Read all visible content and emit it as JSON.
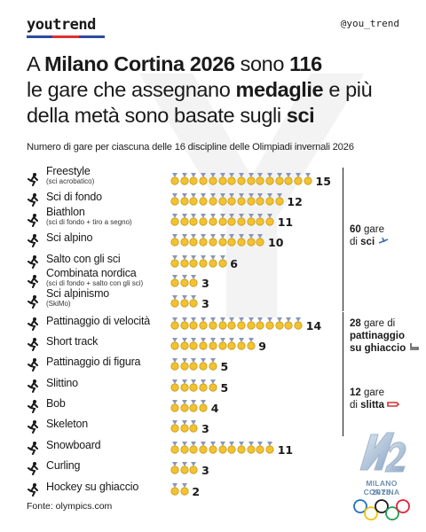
{
  "header": {
    "logo": "youtrend",
    "logo_colors": [
      "#2c4aa0",
      "#e03030",
      "#2c4aa0"
    ],
    "handle": "@you_trend"
  },
  "title": {
    "p1": "A ",
    "b1": "Milano Cortina 2026",
    "p2": " sono ",
    "b2": "116",
    "p3": " le gare che assegnano ",
    "b3": "medaglie",
    "p4": " e più della metà sono basate sugli ",
    "b4": "sci"
  },
  "subtitle": "Numero di gare per ciascuna delle 16 discipline delle Olimpiadi invernali 2026",
  "chart_data": {
    "type": "bar",
    "title": "A Milano Cortina 2026 sono 116 le gare che assegnano medaglie e più della metà sono basate sugli sci",
    "subtitle": "Numero di gare per ciascuna delle 16 discipline delle Olimpiadi invernali 2026",
    "categories": [
      {
        "name": "Freestyle",
        "note": "(sci acrobatico)",
        "icon": "freestyle-skier-icon"
      },
      {
        "name": "Sci di fondo",
        "note": "",
        "icon": "cross-country-skier-icon"
      },
      {
        "name": "Biathlon",
        "note": "(sci di fondo + tiro a segno)",
        "icon": "biathlon-icon"
      },
      {
        "name": "Sci alpino",
        "note": "",
        "icon": "alpine-skier-icon"
      },
      {
        "name": "Salto con gli sci",
        "note": "",
        "icon": "ski-jump-icon"
      },
      {
        "name": "Combinata nordica",
        "note": "(sci di fondo + salto con gli sci)",
        "icon": "nordic-combined-icon"
      },
      {
        "name": "Sci alpinismo",
        "note": "(SkiMo)",
        "icon": "ski-mountaineering-icon"
      },
      {
        "name": "Pattinaggio di velocità",
        "note": "",
        "icon": "speed-skater-icon"
      },
      {
        "name": "Short track",
        "note": "",
        "icon": "short-track-icon"
      },
      {
        "name": "Pattinaggio di figura",
        "note": "",
        "icon": "figure-skater-icon"
      },
      {
        "name": "Slittino",
        "note": "",
        "icon": "luge-icon"
      },
      {
        "name": "Bob",
        "note": "",
        "icon": "bobsleigh-icon"
      },
      {
        "name": "Skeleton",
        "note": "",
        "icon": "skeleton-icon"
      },
      {
        "name": "Snowboard",
        "note": "",
        "icon": "snowboarder-icon"
      },
      {
        "name": "Curling",
        "note": "",
        "icon": "curling-icon"
      },
      {
        "name": "Hockey su ghiaccio",
        "note": "",
        "icon": "ice-hockey-icon"
      }
    ],
    "values": [
      15,
      12,
      11,
      10,
      6,
      3,
      3,
      14,
      9,
      5,
      5,
      4,
      3,
      11,
      3,
      2
    ],
    "mark": "medal-icon",
    "medal_colors": {
      "gold": "#f2c230",
      "ribbon": "#8a97b6",
      "rim": "#c99a16"
    },
    "groups": [
      {
        "count": "60",
        "word_pre": " gare",
        "line2_pre": "di ",
        "key": "sci",
        "icon": "skier-emoji-icon"
      },
      {
        "count": "28",
        "word_pre": " gare di",
        "line2_pre": "",
        "key": "pattinaggio",
        "line3": "su ghiaccio",
        "icon": "ice-skate-emoji-icon"
      },
      {
        "count": "12",
        "word_pre": " gare",
        "line2_pre": "di ",
        "key": "slitta",
        "icon": "sled-emoji-icon"
      }
    ]
  },
  "source": "Fonte: olympics.com",
  "emblem": {
    "name": "MILANO CORTINA",
    "year": "2026",
    "ring_colors": [
      "#1f6fc4",
      "#f4c300",
      "#1a1a1a",
      "#20a050",
      "#e0203a"
    ]
  }
}
